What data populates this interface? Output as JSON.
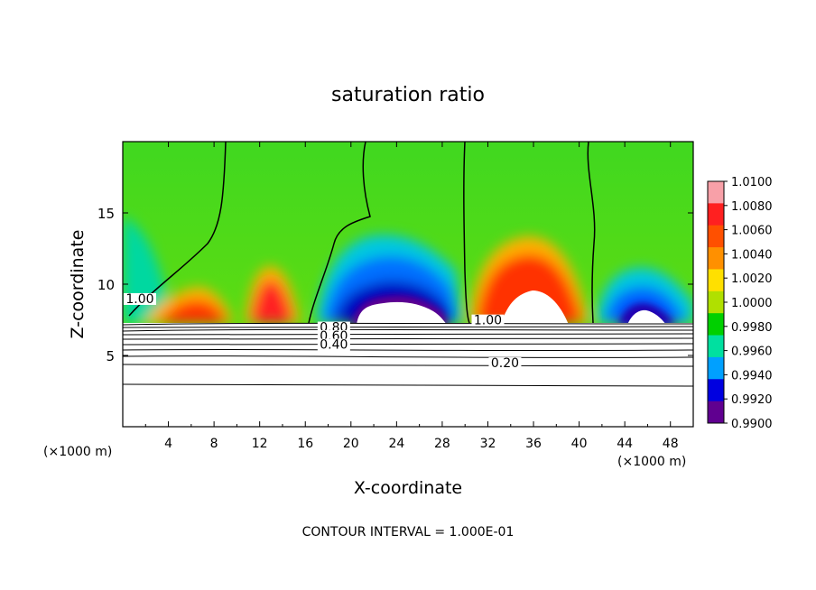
{
  "chart_data": {
    "type": "contour",
    "title": "saturation ratio",
    "xlabel": "X-coordinate",
    "ylabel": "Z-coordinate",
    "x_unit_left": "(×1000 m)",
    "x_unit_right": "(×1000 m)",
    "footer": "CONTOUR INTERVAL = 1.000E-01",
    "xlim": [
      0,
      50
    ],
    "ylim": [
      0,
      20
    ],
    "x_ticks": [
      4,
      8,
      12,
      16,
      20,
      24,
      28,
      32,
      36,
      40,
      44,
      48
    ],
    "y_ticks": [
      5,
      10,
      15
    ],
    "colorbar": {
      "min": 0.99,
      "max": 1.01,
      "labels": [
        "1.0100",
        "1.0080",
        "1.0060",
        "1.0040",
        "1.0020",
        "1.0000",
        "0.9980",
        "0.9960",
        "0.9940",
        "0.9920",
        "0.9900"
      ]
    },
    "contour_labels": [
      {
        "text": "1.00",
        "x": 1.5,
        "z": 8.8
      },
      {
        "text": "1.00",
        "x": 32.0,
        "z": 7.3
      },
      {
        "text": "0.80",
        "x": 18.5,
        "z": 6.8
      },
      {
        "text": "0.60",
        "x": 18.5,
        "z": 6.2
      },
      {
        "text": "0.40",
        "x": 18.5,
        "z": 5.6
      },
      {
        "text": "0.20",
        "x": 33.5,
        "z": 4.3
      }
    ]
  },
  "colors": {
    "colorbar": [
      "#f8a0a8",
      "#ff2020",
      "#ff5000",
      "#ff9000",
      "#ffe000",
      "#b0e000",
      "#00d000",
      "#00e0a0",
      "#00a0ff",
      "#0000e0",
      "#600090"
    ]
  }
}
